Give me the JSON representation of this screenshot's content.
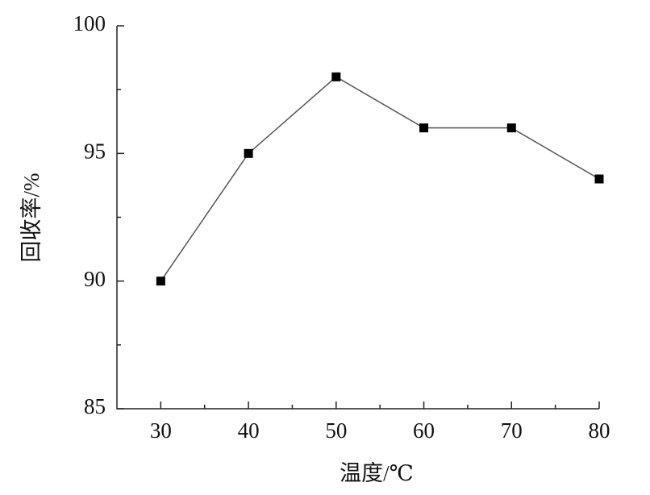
{
  "chart_data": {
    "type": "line",
    "x_label": "温度/℃",
    "y_label": "回收率/%",
    "x": [
      30,
      40,
      50,
      60,
      70,
      80
    ],
    "series": [
      {
        "color": "#000000",
        "values": [
          90,
          95,
          98,
          96,
          96,
          94
        ]
      }
    ],
    "line_color": "#555555",
    "xlim": [
      25,
      80
    ],
    "xticks": [
      30,
      40,
      50,
      60,
      70,
      80
    ],
    "ylim": [
      85,
      100
    ],
    "yticks": [
      85,
      90,
      95,
      100
    ],
    "grid": false
  }
}
